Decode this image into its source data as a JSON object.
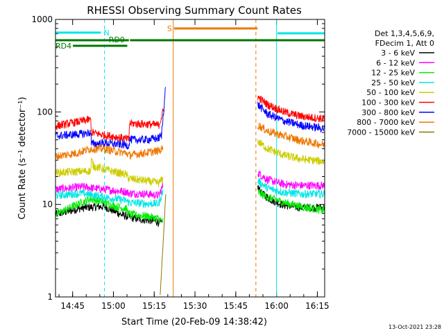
{
  "chart_data": {
    "type": "line",
    "title": "RHESSI Observing Summary Count Rates",
    "xlabel": "Start Time (20-Feb-09 14:38:42)",
    "ylabel": "Count Rate (s⁻¹ detector⁻¹)",
    "ylim": [
      1,
      1000
    ],
    "yscale": "log",
    "xlim_min": [
      0,
      99
    ],
    "xticks": [
      "14:45",
      "15:00",
      "15:15",
      "15:30",
      "15:45",
      "16:00",
      "16:15"
    ],
    "xtick_min": [
      6.3,
      21.3,
      36.3,
      51.3,
      66.3,
      81.3,
      96.3
    ],
    "yticks": [
      "1",
      "10",
      "100",
      "1000"
    ],
    "legend_position": "right",
    "legend_header": [
      "Det 1,3,4,5,6,9,",
      "FDecim 1, Att 0"
    ],
    "timestamp": "13-Oct-2021 23:28",
    "flags": [
      {
        "label": "N",
        "color": "#00e5e5",
        "start": 0,
        "end": 16.7
      },
      {
        "label": "RD0",
        "color": "#007700",
        "start": 0,
        "end": 27
      },
      {
        "label": "RD4",
        "color": "#007700",
        "start": 6.4,
        "end": 26.4
      },
      {
        "label": "S",
        "color": "#ee7700",
        "start": 43.6,
        "end": 74.3
      },
      {
        "label": "",
        "color": "#00e5e5",
        "start": 81.6,
        "end": 99
      },
      {
        "label": "",
        "color": "#007700",
        "start": 27.4,
        "end": 99
      }
    ],
    "vlines": [
      {
        "min": 0,
        "color": "#00e5e5",
        "style": "solid"
      },
      {
        "min": 18,
        "color": "#00e5e5",
        "style": "dashed"
      },
      {
        "min": 43.3,
        "color": "#ee7700",
        "style": "solid"
      },
      {
        "min": 73.7,
        "color": "#ee7700",
        "style": "dashed"
      },
      {
        "min": 81.3,
        "color": "#00e5e5",
        "style": "solid"
      },
      {
        "min": 99,
        "color": "#00e5e5",
        "style": "dashed"
      }
    ],
    "series": [
      {
        "name": "3 - 6 keV",
        "color": "#000000",
        "seg1": [
          [
            0,
            7.8
          ],
          [
            10,
            9.2
          ],
          [
            18,
            9.5
          ],
          [
            24,
            7.8
          ],
          [
            27,
            7.3
          ],
          [
            30,
            7
          ],
          [
            37,
            6.6
          ],
          [
            39,
            6.2
          ]
        ],
        "seg2": [
          [
            74.4,
            15.5
          ],
          [
            76,
            13
          ],
          [
            80,
            11
          ],
          [
            84,
            9.8
          ],
          [
            90,
            9.3
          ],
          [
            99,
            9.2
          ]
        ]
      },
      {
        "name": "6 - 12 keV",
        "color": "#ff00ff",
        "seg1": [
          [
            0,
            14.5
          ],
          [
            10,
            15.5
          ],
          [
            18,
            14.5
          ],
          [
            26,
            13.7
          ],
          [
            27,
            13.2
          ],
          [
            33,
            13
          ],
          [
            38,
            12.5
          ],
          [
            39.5,
            16
          ]
        ],
        "seg2": [
          [
            74.4,
            22
          ],
          [
            78,
            18.5
          ],
          [
            84,
            16.5
          ],
          [
            90,
            16
          ],
          [
            99,
            16
          ]
        ]
      },
      {
        "name": "12 - 25 keV",
        "color": "#00ee00",
        "seg1": [
          [
            0,
            7.8
          ],
          [
            8,
            10
          ],
          [
            13,
            11.5
          ],
          [
            18,
            10.5
          ],
          [
            22,
            9.5
          ],
          [
            26,
            9
          ],
          [
            27,
            7.8
          ],
          [
            33,
            7.5
          ],
          [
            38,
            7
          ],
          [
            39.5,
            6.5
          ]
        ],
        "seg2": [
          [
            74.4,
            13.5
          ],
          [
            78,
            12
          ],
          [
            84,
            10.5
          ],
          [
            90,
            9.5
          ],
          [
            99,
            8.6
          ]
        ]
      },
      {
        "name": "25 - 50 keV",
        "color": "#00e5e5",
        "seg1": [
          [
            0,
            12.5
          ],
          [
            10,
            13.2
          ],
          [
            18,
            12
          ],
          [
            26,
            11
          ],
          [
            27,
            10.5
          ],
          [
            33,
            10.2
          ],
          [
            38,
            10.2
          ],
          [
            39.5,
            14
          ]
        ],
        "seg2": [
          [
            74.4,
            18
          ],
          [
            78,
            15
          ],
          [
            84,
            13.5
          ],
          [
            90,
            13
          ],
          [
            99,
            13
          ]
        ]
      },
      {
        "name": "50 - 100 keV",
        "color": "#cccc00",
        "seg1": [
          [
            0,
            22
          ],
          [
            13,
            23
          ],
          [
            13.2,
            30
          ],
          [
            14,
            26
          ],
          [
            18,
            24
          ],
          [
            23,
            22
          ],
          [
            26,
            21
          ],
          [
            27,
            19
          ],
          [
            33,
            18
          ],
          [
            38,
            17
          ],
          [
            39.5,
            19
          ]
        ],
        "seg2": [
          [
            74.4,
            48
          ],
          [
            78,
            40
          ],
          [
            84,
            34
          ],
          [
            90,
            31
          ],
          [
            99,
            29
          ]
        ]
      },
      {
        "name": "100 - 300 keV",
        "color": "#ff0000",
        "seg1": [
          [
            0,
            70
          ],
          [
            5,
            75
          ],
          [
            12,
            82
          ],
          [
            13,
            82
          ],
          [
            13.2,
            60
          ],
          [
            18,
            56
          ],
          [
            22,
            54
          ],
          [
            26,
            51
          ],
          [
            27,
            50
          ],
          [
            27.2,
            75
          ],
          [
            33,
            74
          ],
          [
            38,
            72
          ],
          [
            40,
            110
          ]
        ],
        "seg2": [
          [
            74.4,
            145
          ],
          [
            78,
            120
          ],
          [
            84,
            100
          ],
          [
            90,
            90
          ],
          [
            99,
            84
          ]
        ]
      },
      {
        "name": "300 - 800 keV",
        "color": "#0000ff",
        "seg1": [
          [
            0,
            55
          ],
          [
            10,
            58
          ],
          [
            13,
            60
          ],
          [
            13.2,
            45
          ],
          [
            18,
            46
          ],
          [
            22,
            45
          ],
          [
            26,
            44
          ],
          [
            27,
            43
          ],
          [
            27.2,
            50
          ],
          [
            33,
            50
          ],
          [
            38,
            52
          ],
          [
            39,
            56
          ],
          [
            40.5,
            190
          ]
        ],
        "seg2": [
          [
            74.4,
            120
          ],
          [
            78,
            95
          ],
          [
            84,
            80
          ],
          [
            90,
            72
          ],
          [
            99,
            66
          ]
        ]
      },
      {
        "name": "800 - 7000 keV",
        "color": "#ee7700",
        "seg1": [
          [
            0,
            33
          ],
          [
            8,
            36
          ],
          [
            13,
            40
          ],
          [
            18,
            40
          ],
          [
            23,
            37
          ],
          [
            26,
            36
          ],
          [
            27,
            34
          ],
          [
            33,
            36
          ],
          [
            38,
            38
          ],
          [
            39.5,
            40
          ]
        ],
        "seg2": [
          [
            74.4,
            72
          ],
          [
            78,
            62
          ],
          [
            84,
            55
          ],
          [
            90,
            49
          ],
          [
            99,
            44
          ]
        ]
      },
      {
        "name": "7000 - 15000 keV",
        "color": "#887700",
        "seg1": [
          [
            38.5,
            1.05
          ],
          [
            39.2,
            2.5
          ],
          [
            39.8,
            5
          ],
          [
            40.6,
            14
          ]
        ],
        "seg2": []
      }
    ]
  }
}
